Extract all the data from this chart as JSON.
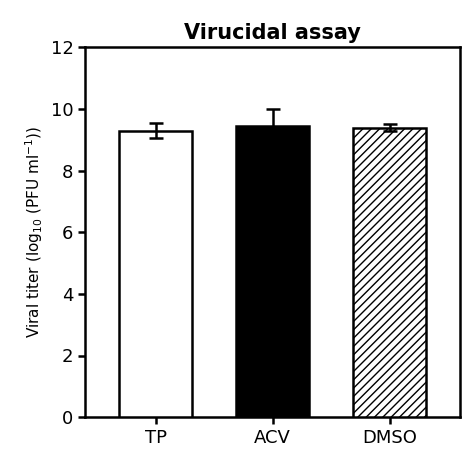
{
  "title": "Virucidal assay",
  "categories": [
    "TP",
    "ACV",
    "DMSO"
  ],
  "values": [
    9.3,
    9.45,
    9.4
  ],
  "errors": [
    0.25,
    0.55,
    0.1
  ],
  "bar_colors": [
    "white",
    "black",
    "white"
  ],
  "bar_hatches": [
    null,
    null,
    "////"
  ],
  "ylabel": "Viral titer (log$_{10}$ (PFU ml$^{-1}$))",
  "ylim": [
    0,
    12
  ],
  "yticks": [
    0,
    2,
    4,
    6,
    8,
    10,
    12
  ],
  "title_fontsize": 15,
  "label_fontsize": 11,
  "tick_fontsize": 13,
  "bar_width": 0.62,
  "edge_color": "black",
  "error_capsize": 5,
  "error_linewidth": 1.8,
  "background_color": "white"
}
